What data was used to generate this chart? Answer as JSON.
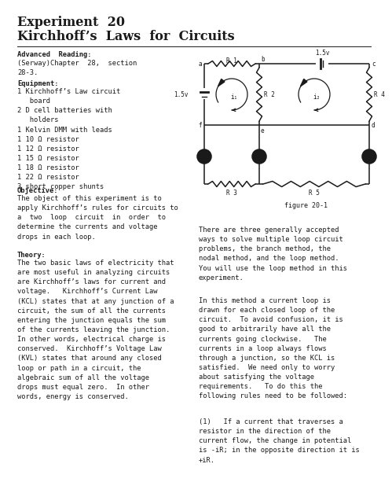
{
  "bg_color": "#ffffff",
  "text_color": "#1a1a1a",
  "title_line1": "Experiment  20",
  "title_line2": "Kirchhoff’s  Laws  for  Circuits",
  "adv_read_header": "Advanced  Reading:",
  "adv_read_body": "(Serway)Chapter  28,  section\n28-3.",
  "equip_header": "Equipment:",
  "equip_body": "1 Kirchhoff’s Law circuit\n   board\n2 D cell batteries with\n   holders\n1 Kelvin DMM with leads\n1 10 Ω resistor\n1 12 Ω resistor\n1 15 Ω resistor\n1 18 Ω resistor\n1 22 Ω resistor\n3 short copper shunts",
  "obj_header": "Objective:",
  "obj_body": "The object of this experiment is to\napply Kirchhoff’s rules for circuits to\na  two  loop  circuit  in  order  to\ndetermine the currents and voltage\ndrops in each loop.",
  "theory_header": "Theory:",
  "theory_body": "The two basic laws of electricity that\nare most useful in analyzing circuits\nare Kirchhoff’s laws for current and\nvoltage.   Kirchhoff’s Current Law\n(KCL) states that at any junction of a\ncircuit, the sum of all the currents\nentering the junction equals the sum\nof the currents leaving the junction.\nIn other words, electrical charge is\nconserved.  Kirchhoff’s Voltage Law\n(KVL) states that around any closed\nloop or path in a circuit, the\nalgebraic sum of all the voltage\ndrops must equal zero.  In other\nwords, energy is conserved.",
  "right_p1": "There are three generally accepted\nways to solve multiple loop circuit\nproblems, the branch method, the\nnodal method, and the loop method.\nYou will use the loop method in this\nexperiment.",
  "right_p2": "In this method a current loop is\ndrawn for each closed loop of the\ncircuit.  To avoid confusion, it is\ngood to arbitrarily have all the\ncurrents going clockwise.   The\ncurrents in a loop always flows\nthrough a junction, so the KCL is\nsatisfied.  We need only to worry\nabout satisfying the voltage\nrequirements.   To do this the\nfollowing rules need to be followed:",
  "right_p3": "(1)   If a current that traverses a\nresistor in the direction of the\ncurrent flow, the change in potential\nis -iR; in the opposite direction it is\n+iR.",
  "fig_label": "figure 20-1",
  "node_labels": [
    "a",
    "b",
    "c",
    "f",
    "e",
    "d"
  ],
  "resistor_labels": [
    "R 1",
    "R 2",
    "R 3",
    "R 4",
    "R 5"
  ],
  "current_labels": [
    "i₁",
    "i₂"
  ],
  "battery_label": "1.5v"
}
